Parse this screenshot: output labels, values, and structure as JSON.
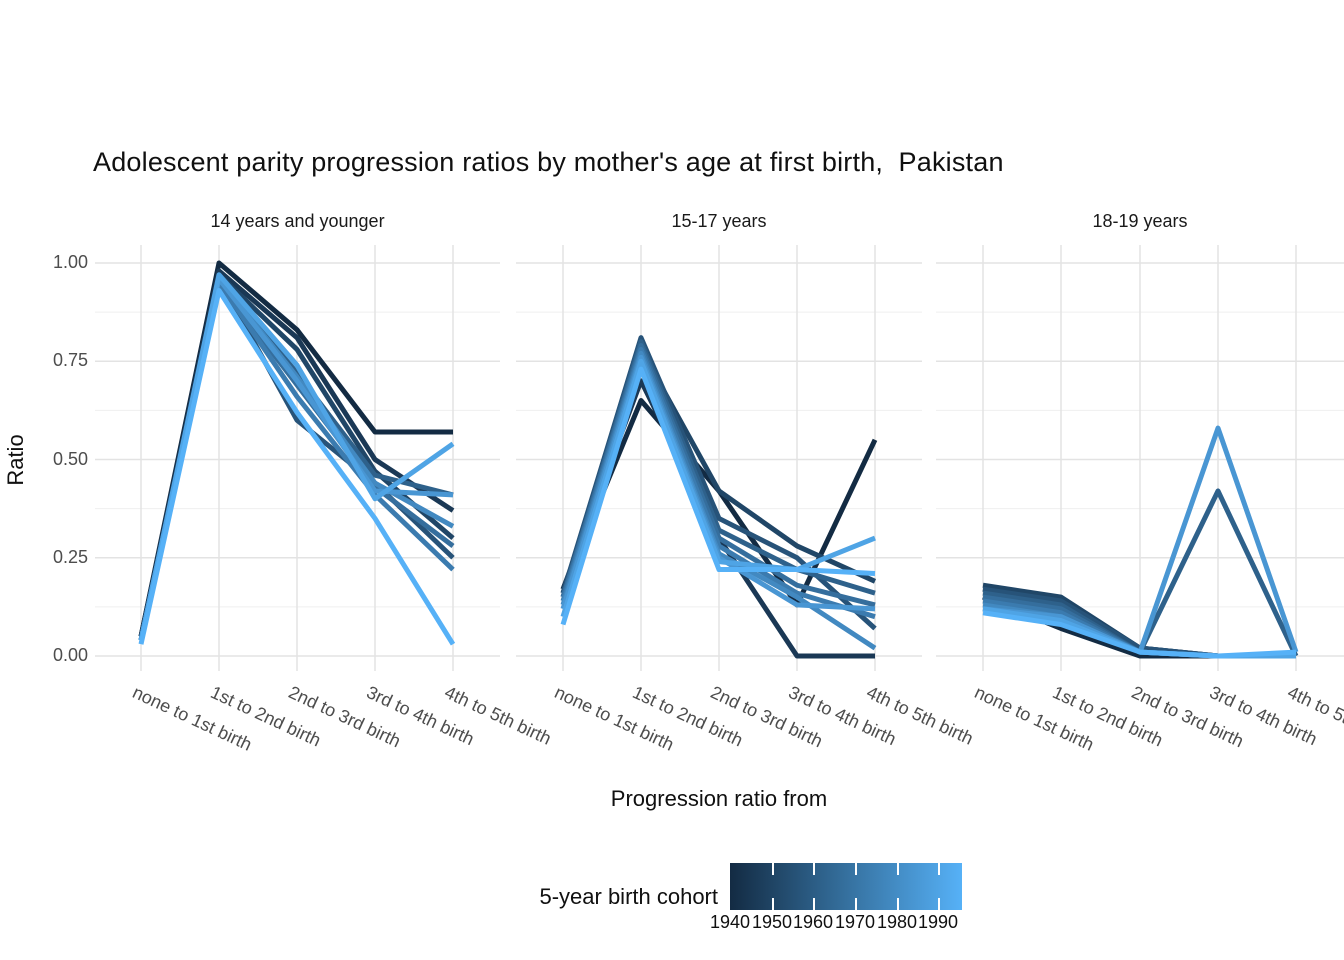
{
  "title": "Adolescent parity progression ratios by mother's age at first birth,  Pakistan",
  "y_axis": {
    "label": "Ratio",
    "ticks": [
      "1.00",
      "0.75",
      "0.50",
      "0.25",
      "0.00"
    ],
    "tick_values": [
      1.0,
      0.75,
      0.5,
      0.25,
      0.0
    ]
  },
  "x_axis": {
    "label": "Progression ratio from",
    "categories": [
      "none to 1st birth",
      "1st to 2nd birth",
      "2nd to 3rd birth",
      "3rd to 4th birth",
      "4th to 5th birth"
    ]
  },
  "legend": {
    "title": "5-year birth cohort",
    "tick_labels": [
      "1940",
      "1950",
      "1960",
      "1970",
      "1980",
      "1990"
    ],
    "gradient_low": "#132B43",
    "gradient_mid": "#35709E",
    "gradient_high": "#56B1F7"
  },
  "chart_data": {
    "type": "line",
    "title": "Adolescent parity progression ratios by mother's age at first birth,  Pakistan",
    "xlabel": "Progression ratio from",
    "ylabel": "Ratio",
    "ylim": [
      0,
      1
    ],
    "grid": "major+minor",
    "legend_position": "bottom",
    "categories": [
      "none to 1st birth",
      "1st to 2nd birth",
      "2nd to 3rd birth",
      "3rd to 4th birth",
      "4th to 5th birth"
    ],
    "cohorts": [
      {
        "name": "1940",
        "color": "#132B43"
      },
      {
        "name": "1945",
        "color": "#1A3855"
      },
      {
        "name": "1950",
        "color": "#204667"
      },
      {
        "name": "1955",
        "color": "#275379"
      },
      {
        "name": "1960",
        "color": "#2E618B"
      },
      {
        "name": "1965",
        "color": "#356E9D"
      },
      {
        "name": "1970",
        "color": "#3B7BAF"
      },
      {
        "name": "1975",
        "color": "#4289C1"
      },
      {
        "name": "1980",
        "color": "#4996D3"
      },
      {
        "name": "1985",
        "color": "#4FA4E5"
      },
      {
        "name": "1990",
        "color": "#56B1F7"
      }
    ],
    "facets": [
      {
        "label": "14 years and younger",
        "series": [
          {
            "name": "1940",
            "values": [
              0.05,
              1.0,
              0.83,
              0.57,
              0.57
            ]
          },
          {
            "name": "1945",
            "values": [
              0.05,
              0.98,
              0.81,
              0.5,
              0.37
            ]
          },
          {
            "name": "1950",
            "values": [
              0.04,
              0.97,
              0.78,
              0.47,
              0.3
            ]
          },
          {
            "name": "1955",
            "values": [
              0.04,
              0.96,
              0.6,
              0.44,
              0.25
            ]
          },
          {
            "name": "1960",
            "values": [
              0.04,
              0.96,
              0.72,
              0.46,
              0.41
            ]
          },
          {
            "name": "1965",
            "values": [
              0.04,
              0.95,
              0.69,
              0.43,
              0.28
            ]
          },
          {
            "name": "1970",
            "values": [
              0.04,
              0.95,
              0.66,
              0.41,
              0.22
            ]
          },
          {
            "name": "1975",
            "values": [
              0.04,
              0.96,
              0.71,
              0.44,
              0.33
            ]
          },
          {
            "name": "1980",
            "values": [
              0.04,
              0.96,
              0.7,
              0.42,
              0.41
            ]
          },
          {
            "name": "1985",
            "values": [
              0.04,
              0.97,
              0.74,
              0.4,
              0.54
            ]
          },
          {
            "name": "1990",
            "values": [
              0.03,
              0.93,
              0.62,
              0.35,
              0.03
            ]
          }
        ]
      },
      {
        "label": "15-17 years",
        "series": [
          {
            "name": "1940",
            "values": [
              0.17,
              0.65,
              0.42,
              0.13,
              0.55
            ]
          },
          {
            "name": "1945",
            "values": [
              0.17,
              0.7,
              0.3,
              0.0,
              0.0
            ]
          },
          {
            "name": "1950",
            "values": [
              0.16,
              0.78,
              0.42,
              0.28,
              0.19
            ]
          },
          {
            "name": "1955",
            "values": [
              0.16,
              0.81,
              0.35,
              0.25,
              0.07
            ]
          },
          {
            "name": "1960",
            "values": [
              0.15,
              0.8,
              0.32,
              0.22,
              0.16
            ]
          },
          {
            "name": "1965",
            "values": [
              0.15,
              0.79,
              0.3,
              0.18,
              0.13
            ]
          },
          {
            "name": "1970",
            "values": [
              0.14,
              0.78,
              0.28,
              0.16,
              0.1
            ]
          },
          {
            "name": "1975",
            "values": [
              0.13,
              0.77,
              0.26,
              0.15,
              0.02
            ]
          },
          {
            "name": "1980",
            "values": [
              0.12,
              0.76,
              0.25,
              0.13,
              0.12
            ]
          },
          {
            "name": "1985",
            "values": [
              0.1,
              0.75,
              0.24,
              0.22,
              0.3
            ]
          },
          {
            "name": "1990",
            "values": [
              0.08,
              0.73,
              0.22,
              0.22,
              0.21
            ]
          }
        ]
      },
      {
        "label": "18-19 years",
        "series": [
          {
            "name": "1940",
            "values": [
              0.15,
              0.07,
              0.0,
              0.0,
              0.0
            ]
          },
          {
            "name": "1945",
            "values": [
              0.17,
              0.14,
              0.02,
              0.0,
              0.0
            ]
          },
          {
            "name": "1950",
            "values": [
              0.18,
              0.15,
              0.02,
              0.0,
              0.0
            ]
          },
          {
            "name": "1955",
            "values": [
              0.17,
              0.14,
              0.02,
              0.0,
              0.0
            ]
          },
          {
            "name": "1960",
            "values": [
              0.16,
              0.13,
              0.01,
              0.42,
              0.0
            ]
          },
          {
            "name": "1965",
            "values": [
              0.15,
              0.12,
              0.01,
              0.0,
              0.0
            ]
          },
          {
            "name": "1970",
            "values": [
              0.14,
              0.11,
              0.01,
              0.0,
              0.0
            ]
          },
          {
            "name": "1975",
            "values": [
              0.13,
              0.1,
              0.01,
              0.0,
              0.0
            ]
          },
          {
            "name": "1980",
            "values": [
              0.12,
              0.1,
              0.01,
              0.58,
              0.01
            ]
          },
          {
            "name": "1985",
            "values": [
              0.12,
              0.09,
              0.01,
              0.0,
              0.0
            ]
          },
          {
            "name": "1990",
            "values": [
              0.11,
              0.08,
              0.01,
              0.0,
              0.01
            ]
          }
        ]
      }
    ]
  }
}
